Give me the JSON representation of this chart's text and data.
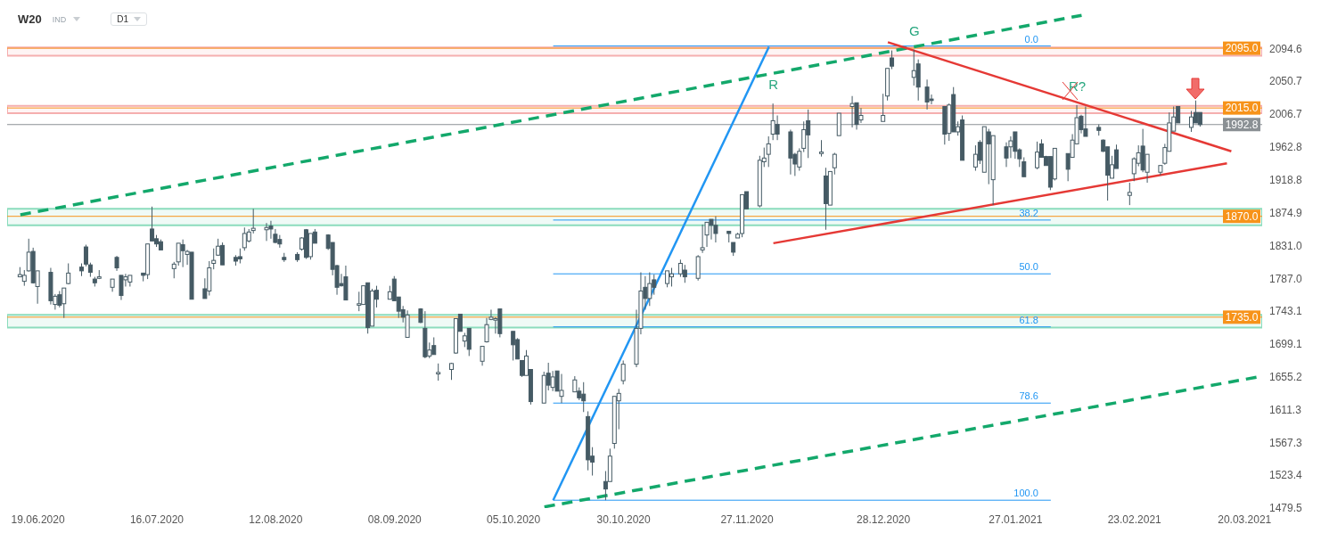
{
  "chart_data": {
    "type": "candlestick",
    "title": "W20",
    "subtitle": "IND",
    "color": "#455a64",
    "x": [
      "2020-06-15",
      "2020-06-16",
      "2020-06-17",
      "2020-06-18",
      "2020-06-19",
      "2020-06-22",
      "2020-06-23",
      "2020-06-24",
      "2020-06-25",
      "2020-06-26",
      "2020-06-29",
      "2020-06-30",
      "2020-07-01",
      "2020-07-02",
      "2020-07-03",
      "2020-07-06",
      "2020-07-07",
      "2020-07-08",
      "2020-07-09",
      "2020-07-10",
      "2020-07-13",
      "2020-07-14",
      "2020-07-15",
      "2020-07-16",
      "2020-07-17",
      "2020-07-20",
      "2020-07-21",
      "2020-07-22",
      "2020-07-23",
      "2020-07-24",
      "2020-07-27",
      "2020-07-28",
      "2020-07-29",
      "2020-07-30",
      "2020-07-31",
      "2020-08-03",
      "2020-08-04",
      "2020-08-05",
      "2020-08-06",
      "2020-08-07",
      "2020-08-10",
      "2020-08-11",
      "2020-08-12",
      "2020-08-13",
      "2020-08-14",
      "2020-08-17",
      "2020-08-18",
      "2020-08-19",
      "2020-08-20",
      "2020-08-21",
      "2020-08-24",
      "2020-08-25",
      "2020-08-26",
      "2020-08-27",
      "2020-08-28",
      "2020-08-31",
      "2020-09-01",
      "2020-09-02",
      "2020-09-03",
      "2020-09-04",
      "2020-09-07",
      "2020-09-08",
      "2020-09-09",
      "2020-09-10",
      "2020-09-11",
      "2020-09-14",
      "2020-09-15",
      "2020-09-16",
      "2020-09-17",
      "2020-09-18",
      "2020-09-21",
      "2020-09-22",
      "2020-09-23",
      "2020-09-24",
      "2020-09-25",
      "2020-09-28",
      "2020-09-29",
      "2020-09-30",
      "2020-10-01",
      "2020-10-02",
      "2020-10-05",
      "2020-10-06",
      "2020-10-07",
      "2020-10-08",
      "2020-10-09",
      "2020-10-12",
      "2020-10-13",
      "2020-10-14",
      "2020-10-15",
      "2020-10-16",
      "2020-10-19",
      "2020-10-20",
      "2020-10-21",
      "2020-10-22",
      "2020-10-23",
      "2020-10-26",
      "2020-10-27",
      "2020-10-28",
      "2020-10-29",
      "2020-10-30",
      "2020-11-02",
      "2020-11-03",
      "2020-11-04",
      "2020-11-05",
      "2020-11-06",
      "2020-11-09",
      "2020-11-10",
      "2020-11-12",
      "2020-11-13",
      "2020-11-16",
      "2020-11-17",
      "2020-11-18",
      "2020-11-19",
      "2020-11-20",
      "2020-11-23",
      "2020-11-24",
      "2020-11-25",
      "2020-11-26",
      "2020-11-27",
      "2020-11-30",
      "2020-12-01",
      "2020-12-02",
      "2020-12-03",
      "2020-12-04",
      "2020-12-07",
      "2020-12-08",
      "2020-12-09",
      "2020-12-10",
      "2020-12-11",
      "2020-12-14",
      "2020-12-15",
      "2020-12-16",
      "2020-12-17",
      "2020-12-18",
      "2020-12-21",
      "2020-12-22",
      "2020-12-23",
      "2020-12-28",
      "2020-12-29",
      "2020-12-30",
      "2021-01-04",
      "2021-01-05",
      "2021-01-07",
      "2021-01-08",
      "2021-01-11",
      "2021-01-12",
      "2021-01-13",
      "2021-01-14",
      "2021-01-15",
      "2021-01-18",
      "2021-01-19",
      "2021-01-20",
      "2021-01-21",
      "2021-01-22",
      "2021-01-25",
      "2021-01-26",
      "2021-01-27",
      "2021-01-28",
      "2021-01-29",
      "2021-02-01",
      "2021-02-02",
      "2021-02-03",
      "2021-02-04",
      "2021-02-05",
      "2021-02-08",
      "2021-02-09",
      "2021-02-10",
      "2021-02-11",
      "2021-02-12",
      "2021-02-15",
      "2021-02-16",
      "2021-02-17",
      "2021-02-18",
      "2021-02-19",
      "2021-02-22",
      "2021-02-23",
      "2021-02-24",
      "2021-02-25",
      "2021-02-26",
      "2021-03-01",
      "2021-03-02",
      "2021-03-03",
      "2021-03-04",
      "2021-03-05",
      "2021-03-08",
      "2021-03-09",
      "2021-03-10"
    ],
    "ohlc": [
      [
        1789,
        1802,
        1789,
        1792
      ],
      [
        1783,
        1798,
        1777,
        1791
      ],
      [
        1797,
        1840,
        1796,
        1822
      ],
      [
        1823,
        1828,
        1780,
        1781
      ],
      [
        1776,
        1797,
        1753,
        1797
      ],
      [
        1795,
        1801,
        1752,
        1757
      ],
      [
        1752,
        1766,
        1745,
        1763
      ],
      [
        1765,
        1770,
        1748,
        1751
      ],
      [
        1753,
        1774,
        1734,
        1774
      ],
      [
        1780,
        1807,
        1779,
        1794
      ],
      [
        1802,
        1807,
        1790,
        1797
      ],
      [
        1829,
        1832,
        1803,
        1806
      ],
      [
        1805,
        1808,
        1789,
        1795
      ],
      [
        1786,
        1789,
        1776,
        1781
      ],
      [
        1787,
        1798,
        1786,
        1789
      ],
      [
        1775,
        1786,
        1769,
        1786
      ],
      [
        1815,
        1817,
        1797,
        1801
      ],
      [
        1791,
        1791,
        1758,
        1764
      ],
      [
        1785,
        1793,
        1776,
        1789
      ],
      [
        1782,
        1791,
        1776,
        1791
      ],
      [
        1794,
        1794,
        1783,
        1791
      ],
      [
        1792,
        1833,
        1786,
        1833
      ],
      [
        1853,
        1883,
        1837,
        1837
      ],
      [
        1840,
        1845,
        1829,
        1833
      ],
      [
        1836,
        1839,
        1825,
        1825
      ],
      [
        1800,
        1809,
        1787,
        1806
      ],
      [
        1809,
        1834,
        1804,
        1834
      ],
      [
        1832,
        1839,
        1802,
        1824
      ],
      [
        1819,
        1825,
        1805,
        1823
      ],
      [
        1822,
        1822,
        1759,
        1759
      ],
      [
        1773,
        1787,
        1760,
        1760
      ],
      [
        1770,
        1810,
        1764,
        1801
      ],
      [
        1807,
        1827,
        1799,
        1811
      ],
      [
        1818,
        1840,
        1817,
        1830
      ],
      [
        1831,
        1835,
        1805,
        1805
      ],
      [
        1815,
        1818,
        1804,
        1810
      ],
      [
        1816,
        1827,
        1807,
        1813
      ],
      [
        1828,
        1855,
        1824,
        1847
      ],
      [
        1837,
        1853,
        1835,
        1849
      ],
      [
        1851,
        1880,
        1847,
        1854
      ],
      [
        1852,
        1861,
        1837,
        1855
      ],
      [
        1857,
        1864,
        1840,
        1853
      ],
      [
        1846,
        1853,
        1834,
        1835
      ],
      [
        1839,
        1845,
        1828,
        1833
      ],
      [
        1815,
        1821,
        1809,
        1812
      ],
      [
        1819,
        1822,
        1809,
        1812
      ],
      [
        1826,
        1842,
        1824,
        1841
      ],
      [
        1852,
        1853,
        1813,
        1815
      ],
      [
        1816,
        1847,
        1812,
        1847
      ],
      [
        1849,
        1853,
        1834,
        1834
      ],
      [
        1845,
        1846,
        1825,
        1827
      ],
      [
        1835,
        1835,
        1791,
        1799
      ],
      [
        1804,
        1805,
        1765,
        1775
      ],
      [
        1780,
        1793,
        1776,
        1777
      ],
      [
        1789,
        1804,
        1758,
        1758
      ],
      [
        1751,
        1769,
        1743,
        1753
      ],
      [
        1752,
        1777,
        1752,
        1777
      ],
      [
        1781,
        1781,
        1713,
        1721
      ],
      [
        1723,
        1773,
        1723,
        1770
      ],
      [
        1771,
        1777,
        1748,
        1759
      ],
      [
        1759,
        1777,
        1759,
        1769
      ],
      [
        1786,
        1790,
        1757,
        1757
      ],
      [
        1762,
        1762,
        1734,
        1743
      ],
      [
        1745,
        1750,
        1728,
        1735
      ],
      [
        1708,
        1744,
        1708,
        1738
      ],
      [
        1746,
        1747,
        1727,
        1728
      ],
      [
        1720,
        1743,
        1680,
        1682
      ],
      [
        1683,
        1701,
        1680,
        1691
      ],
      [
        1697,
        1708,
        1685,
        1685
      ],
      [
        1659,
        1673,
        1650,
        1661
      ],
      [
        1665,
        1674,
        1651,
        1673
      ],
      [
        1687,
        1733,
        1686,
        1733
      ],
      [
        1739,
        1739,
        1716,
        1716
      ],
      [
        1703,
        1714,
        1695,
        1710
      ],
      [
        1720,
        1720,
        1683,
        1692
      ],
      [
        1676,
        1696,
        1670,
        1696
      ],
      [
        1702,
        1734,
        1701,
        1725
      ],
      [
        1732,
        1745,
        1731,
        1735
      ],
      [
        1731,
        1735,
        1713,
        1733
      ],
      [
        1746,
        1746,
        1708,
        1713
      ],
      [
        1716,
        1716,
        1677,
        1698
      ],
      [
        1705,
        1707,
        1679,
        1679
      ],
      [
        1677,
        1677,
        1655,
        1657
      ],
      [
        1657,
        1691,
        1657,
        1683
      ],
      [
        1665,
        1665,
        1618,
        1622
      ],
      [
        1620,
        1662,
        1620,
        1657
      ],
      [
        1660,
        1674,
        1637,
        1644
      ],
      [
        1641,
        1663,
        1636,
        1655
      ],
      [
        1663,
        1663,
        1636,
        1636
      ],
      [
        1629,
        1659,
        1620,
        1637
      ],
      [
        1635,
        1656,
        1635,
        1651
      ],
      [
        1636,
        1641,
        1624,
        1627
      ],
      [
        1632,
        1648,
        1608,
        1623
      ],
      [
        1602,
        1609,
        1530,
        1544
      ],
      [
        1549,
        1561,
        1523,
        1541
      ],
      [
        1515,
        1529,
        1490,
        1505
      ],
      [
        1515,
        1559,
        1515,
        1549
      ],
      [
        1566,
        1629,
        1559,
        1629
      ],
      [
        1623,
        1639,
        1585,
        1633
      ],
      [
        1650,
        1677,
        1645,
        1672
      ],
      [
        1672,
        1745,
        1668,
        1720
      ],
      [
        1720,
        1795,
        1712,
        1770
      ],
      [
        1775,
        1790,
        1745,
        1760
      ],
      [
        1760,
        1795,
        1750,
        1780
      ],
      [
        1785,
        1792,
        1765,
        1775
      ],
      [
        1780,
        1797,
        1775,
        1797
      ],
      [
        1789,
        1801,
        1776,
        1793
      ],
      [
        1793,
        1812,
        1789,
        1807
      ],
      [
        1798,
        1805,
        1781,
        1789
      ],
      [
        1787,
        1818,
        1784,
        1816
      ],
      [
        1825,
        1859,
        1821,
        1828
      ],
      [
        1845,
        1862,
        1829,
        1862
      ],
      [
        1866,
        1866,
        1839,
        1858
      ],
      [
        1858,
        1870,
        1835,
        1847
      ],
      [
        1850,
        1850,
        1835,
        1847
      ],
      [
        1835,
        1835,
        1817,
        1822
      ],
      [
        1841,
        1848,
        1841,
        1846
      ],
      [
        1847,
        1899,
        1842,
        1899
      ],
      [
        1903,
        1903,
        1880,
        1880
      ],
      [
        1884,
        1951,
        1882,
        1945
      ],
      [
        1943,
        1962,
        1936,
        1948
      ],
      [
        1953,
        1977,
        1936,
        1967
      ],
      [
        1980,
        2021,
        1972,
        1998
      ],
      [
        1993,
        2005,
        1972,
        1980
      ],
      [
        1983,
        1986,
        1926,
        1948
      ],
      [
        1953,
        1955,
        1924,
        1940
      ],
      [
        1936,
        1961,
        1931,
        1957
      ],
      [
        1961,
        1997,
        1956,
        1986
      ],
      [
        1998,
        2013,
        1948,
        1979
      ],
      [
        1954,
        1972,
        1950,
        1956
      ],
      [
        1924,
        1935,
        1852,
        1887
      ],
      [
        1885,
        1930,
        1885,
        1930
      ],
      [
        1935,
        1955,
        1926,
        1953
      ],
      [
        1978,
        2008,
        1978,
        2008
      ],
      [
        2017,
        2031,
        1989,
        2021
      ],
      [
        2022,
        2022,
        1986,
        1993
      ],
      [
        1999,
        2015,
        1995,
        2005
      ],
      [
        1997,
        2034,
        1997,
        2005
      ],
      [
        2031,
        2068,
        2025,
        2068
      ],
      [
        2082,
        2092,
        2067,
        2071
      ],
      [
        2056,
        2093,
        2045,
        2065
      ],
      [
        2074,
        2080,
        2025,
        2043
      ],
      [
        2043,
        2053,
        2013,
        2023
      ],
      [
        2027,
        2033,
        2020,
        2025
      ],
      [
        2017,
        2017,
        1966,
        1980
      ],
      [
        1981,
        2021,
        1971,
        2019
      ],
      [
        2033,
        2043,
        1983,
        1983
      ],
      [
        1983,
        1997,
        1978,
        1990
      ],
      [
        1999,
        2005,
        1945,
        1945
      ],
      [
        1936,
        1965,
        1931,
        1953
      ],
      [
        1969,
        1972,
        1940,
        1945
      ],
      [
        1929,
        1990,
        1929,
        1990
      ],
      [
        1983,
        1987,
        1913,
        1967
      ],
      [
        1919,
        1978,
        1885,
        1978
      ],
      [
        1963,
        1969,
        1936,
        1948
      ],
      [
        1963,
        1977,
        1948,
        1971
      ],
      [
        1983,
        1983,
        1947,
        1957
      ],
      [
        1959,
        1961,
        1936,
        1947
      ],
      [
        1943,
        1949,
        1923,
        1923
      ],
      [
        1935,
        1970,
        1933,
        1956
      ],
      [
        1967,
        1973,
        1949,
        1949
      ],
      [
        1950,
        1951,
        1938,
        1938
      ],
      [
        1950,
        1950,
        1905,
        1909
      ],
      [
        1920,
        1961,
        1918,
        1961
      ],
      [
        1954,
        1954,
        1917,
        1933
      ],
      [
        1949,
        1980,
        1949,
        1972
      ],
      [
        1967,
        2019,
        1967,
        2002
      ],
      [
        2004,
        2006,
        1981,
        1986
      ],
      [
        1987,
        2017,
        1977,
        1977
      ],
      [
        1989,
        1993,
        1978,
        1985
      ],
      [
        1972,
        1973,
        1956,
        1957
      ],
      [
        1963,
        1963,
        1891,
        1925
      ],
      [
        1921,
        1951,
        1921,
        1939
      ],
      [
        1959,
        1966,
        1934,
        1934
      ],
      [
        1898,
        1915,
        1885,
        1902
      ],
      [
        1927,
        1949,
        1917,
        1947
      ],
      [
        1941,
        1965,
        1937,
        1955
      ],
      [
        1964,
        1987,
        1929,
        1932
      ],
      [
        1929,
        1953,
        1915,
        1953
      ],
      [
        1929,
        1938,
        1925,
        1938
      ],
      [
        1941,
        1967,
        1939,
        1962
      ],
      [
        1957,
        2009,
        1957,
        1995
      ],
      [
        1984,
        2017,
        1984,
        2003
      ],
      [
        2017,
        2017,
        1995,
        1995
      ],
      [
        1989,
        2011,
        1983,
        2003
      ],
      [
        2009,
        2025,
        1995,
        1995
      ],
      [
        2009,
        2009,
        1990,
        1992.8
      ]
    ],
    "series": [
      {
        "type": "line",
        "name": "0.0",
        "color": "#2196f3",
        "x": [
          "2020-10-14",
          "2021-02-04"
        ],
        "values": [
          2098,
          2098
        ]
      },
      {
        "type": "line",
        "name": "38.2",
        "color": "#2196f3",
        "x": [
          "2020-10-14",
          "2021-02-04"
        ],
        "values": [
          1865,
          1865
        ]
      },
      {
        "type": "line",
        "name": "50.0",
        "color": "#2196f3",
        "x": [
          "2020-10-14",
          "2021-02-04"
        ],
        "values": [
          1793,
          1793
        ]
      },
      {
        "type": "line",
        "name": "61.8",
        "color": "#2196f3",
        "x": [
          "2020-10-14",
          "2021-02-04"
        ],
        "values": [
          1722,
          1722
        ]
      },
      {
        "type": "line",
        "name": "78.6",
        "color": "#2196f3",
        "x": [
          "2020-10-14",
          "2021-02-04"
        ],
        "values": [
          1620,
          1620
        ]
      },
      {
        "type": "line",
        "name": "100.0",
        "color": "#2196f3",
        "x": [
          "2020-10-14",
          "2021-02-04"
        ],
        "values": [
          1490,
          1490
        ]
      },
      {
        "type": "line",
        "color": "#2196f3",
        "x": [
          "2020-10-14",
          "2020-12-02"
        ],
        "values": [
          1490,
          2097
        ]
      },
      {
        "type": "line",
        "color": "#13a86b",
        "line_style": "dashed",
        "x": [
          "2020-06-15",
          "2021-02-11"
        ],
        "values": [
          1872,
          2139
        ]
      },
      {
        "type": "line",
        "color": "#13a86b",
        "line_style": "dashed",
        "x": [
          "2020-10-12",
          "2021-03-24"
        ],
        "values": [
          1481,
          1656
        ]
      },
      {
        "type": "line",
        "color": "#e53935",
        "x": [
          "2020-12-29",
          "2021-03-17"
        ],
        "values": [
          2103,
          1957
        ]
      },
      {
        "type": "line",
        "color": "#e53935",
        "x": [
          "2020-12-03",
          "2021-03-16"
        ],
        "values": [
          1834,
          1941
        ]
      }
    ],
    "ref_lines": [
      {
        "axis": "y",
        "value": 2095,
        "label": "2095.0",
        "color": "#f7931a"
      },
      {
        "axis": "y",
        "value": 2015,
        "label": "2015.0",
        "color": "#f7931a"
      },
      {
        "axis": "y",
        "value": 1870,
        "label": "1870.0",
        "color": "#f7931a"
      },
      {
        "axis": "y",
        "value": 1735,
        "label": "1735.0",
        "color": "#f7931a"
      },
      {
        "axis": "y",
        "value": 1992.8,
        "label": "1992.8",
        "color": "#8a9094"
      }
    ],
    "bands": [
      {
        "axis": "y",
        "from": 2085,
        "to": 2096,
        "color": "#f4a6a6"
      },
      {
        "axis": "y",
        "from": 2008,
        "to": 2018,
        "color": "#f4a6a6"
      },
      {
        "axis": "y",
        "from": 1858,
        "to": 1880,
        "color": "#7fd8b6"
      },
      {
        "axis": "y",
        "from": 1721,
        "to": 1738,
        "color": "#7fd8b6"
      }
    ],
    "annotations": [
      "D1",
      {
        "text": "R",
        "x": "2020-12-03",
        "y": 2021
      },
      {
        "text": "G",
        "x": "2021-01-04",
        "y": 2093
      },
      {
        "text": "R?",
        "x": "2021-02-10",
        "y": 2019
      }
    ],
    "xlim": [
      "2020-06-12",
      "2021-03-24"
    ],
    "xticks": [
      {
        "value": "2020-06-19",
        "label": "19.06.2020"
      },
      {
        "value": "2020-07-16",
        "label": "16.07.2020"
      },
      {
        "value": "2020-08-12",
        "label": "12.08.2020"
      },
      {
        "value": "2020-09-08",
        "label": "08.09.2020"
      },
      {
        "value": "2020-10-05",
        "label": "05.10.2020"
      },
      {
        "value": "2020-10-30",
        "label": "30.10.2020"
      },
      {
        "value": "2020-11-27",
        "label": "27.11.2020"
      },
      {
        "value": "2020-12-28",
        "label": "28.12.2020"
      },
      {
        "value": "2021-01-27",
        "label": "27.01.2021"
      },
      {
        "value": "2021-02-23",
        "label": "23.02.2021"
      },
      {
        "value": "2021-03-20",
        "label": "20.03.2021"
      }
    ],
    "ylim": [
      1479.5,
      2150
    ],
    "yticks": [
      1479.5,
      1523.4,
      1567.3,
      1611.3,
      1655.2,
      1699.1,
      1743.1,
      {
        "value": 1787,
        "label": "1787.0"
      },
      {
        "value": 1831,
        "label": "1831.0"
      },
      1874.9,
      1918.8,
      1962.8,
      2006.7,
      2050.7,
      2094.6
    ]
  }
}
